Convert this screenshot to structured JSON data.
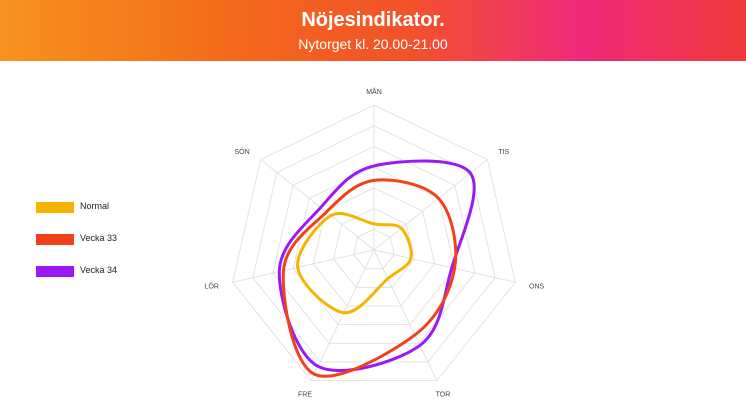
{
  "header": {
    "title": "Nöjesindikator.",
    "subtitle": "Nytorget kl. 20.00-21.00"
  },
  "colors": {
    "normal": "#f5b400",
    "vecka33": "#f2401a",
    "vecka34": "#9b19f5",
    "grid": "#dddddd"
  },
  "chart_data": {
    "type": "radar",
    "title": "Nöjesindikator.",
    "subtitle": "Nytorget kl. 20.00-21.00",
    "categories": [
      "MÅN",
      "TIS",
      "ONS",
      "TOR",
      "FRE",
      "LÖR",
      "SÖN"
    ],
    "rmax": 100,
    "grid_levels": 7,
    "grid": true,
    "legend_position": "left",
    "series": [
      {
        "name": "Normal",
        "colorKey": "normal",
        "values": [
          18,
          24,
          26,
          22,
          48,
          54,
          38
        ]
      },
      {
        "name": "Vecka 33",
        "colorKey": "vecka33",
        "values": [
          48,
          57,
          57,
          65,
          95,
          64,
          42
        ]
      },
      {
        "name": "Vecka 34",
        "colorKey": "vecka34",
        "values": [
          58,
          85,
          55,
          73,
          89,
          67,
          47
        ]
      }
    ]
  }
}
